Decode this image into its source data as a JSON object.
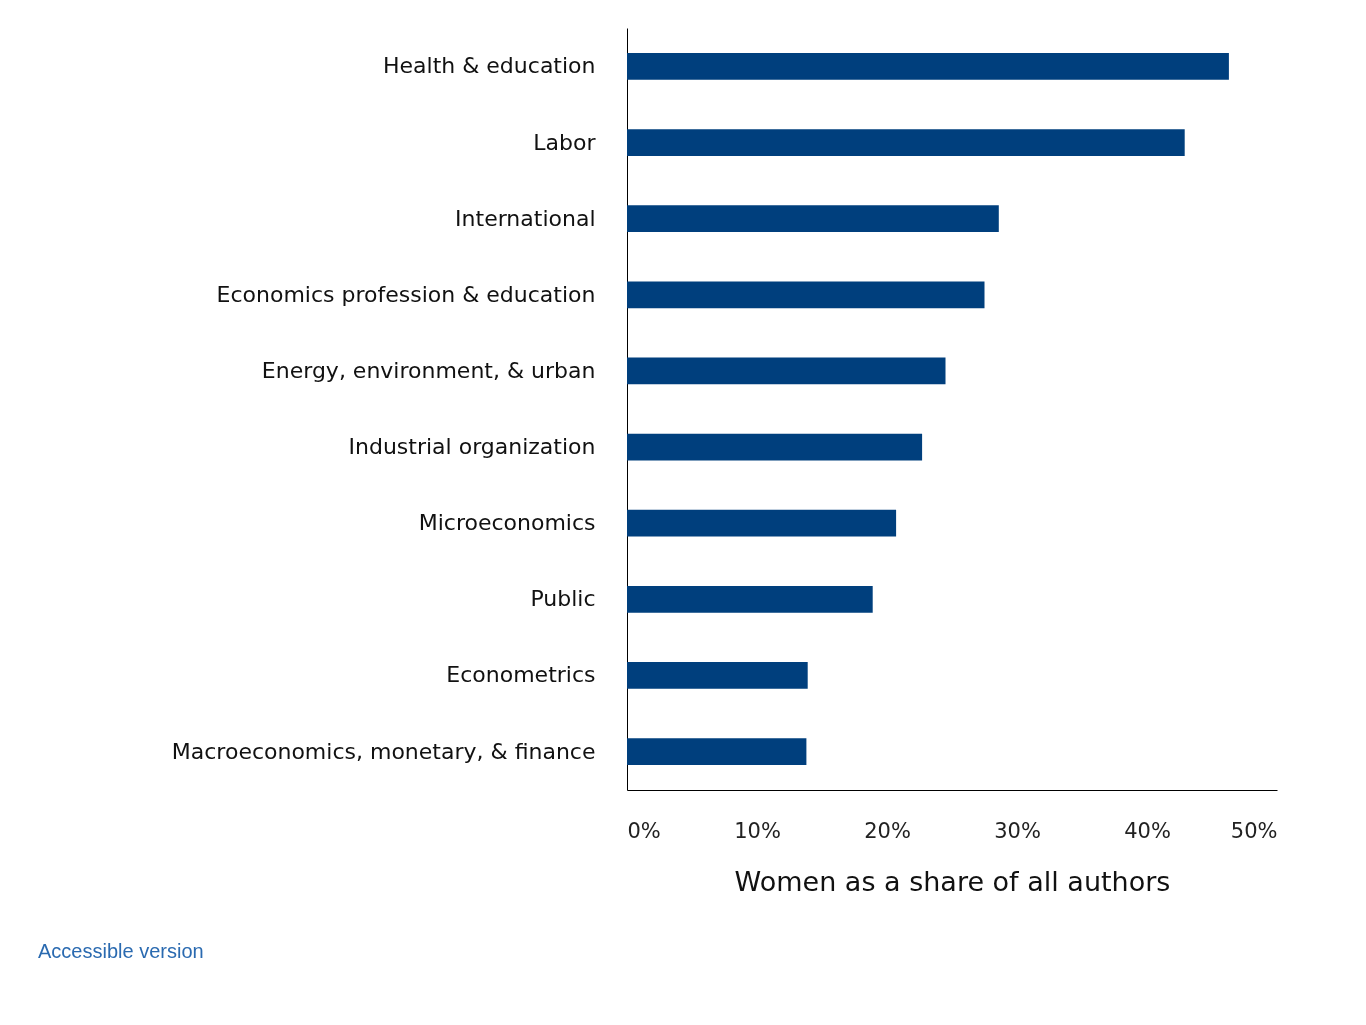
{
  "chart_data": {
    "type": "bar",
    "orientation": "horizontal",
    "xlabel": "Women as a share of all authors",
    "categories": [
      "Health & education",
      "Labor",
      "International",
      "Economics profession & education",
      "Energy, environment, & urban",
      "Industrial organization",
      "Microeconomics",
      "Public",
      "Econometrics",
      "Macroeconomics, monetary, & finance"
    ],
    "values": [
      46.3,
      42.9,
      28.6,
      27.5,
      24.5,
      22.7,
      20.7,
      18.9,
      13.9,
      13.8
    ],
    "color": "#003f7d",
    "xlim": [
      0,
      50
    ],
    "xticks": [
      {
        "value": 0,
        "label": "0%"
      },
      {
        "value": 10,
        "label": "10%"
      },
      {
        "value": 20,
        "label": "20%"
      },
      {
        "value": 30,
        "label": "30%"
      },
      {
        "value": 40,
        "label": "40%"
      },
      {
        "value": 50,
        "label": "50%"
      }
    ],
    "grid": false,
    "annotations": [
      "Accessible version"
    ]
  }
}
